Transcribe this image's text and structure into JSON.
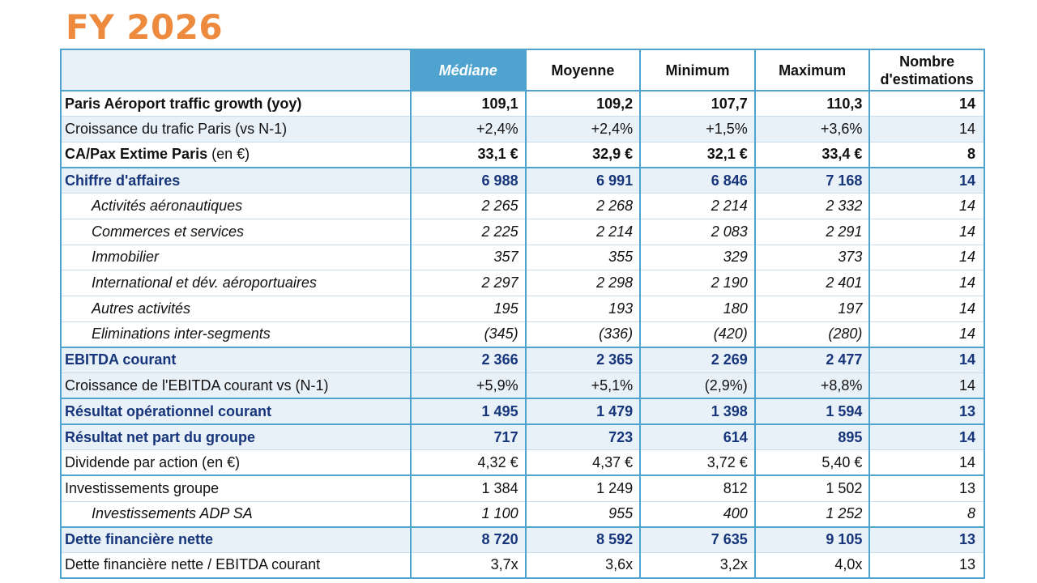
{
  "title": "FY 2026",
  "columns": [
    "Médiane",
    "Moyenne",
    "Minimum",
    "Maximum",
    "Nombre d'estimations"
  ],
  "rows": [
    {
      "label": "Paris Aéroport traffic growth (yoy)",
      "suffix": "",
      "values": [
        "109,1",
        "109,2",
        "107,7",
        "110,3"
      ],
      "count": "14",
      "style": "bold"
    },
    {
      "label": "Croissance du trafic Paris (vs N-1)",
      "suffix": "",
      "values": [
        "+2,4%",
        "+2,4%",
        "+1,5%",
        "+3,6%"
      ],
      "count": "14",
      "style": "shaded"
    },
    {
      "label": "CA/Pax Extime Paris",
      "suffix": " (en €)",
      "values": [
        "33,1 €",
        "32,9 €",
        "32,1 €",
        "33,4 €"
      ],
      "count": "8",
      "style": "bold"
    },
    {
      "label": "Chiffre d'affaires",
      "suffix": "",
      "values": [
        "6 988",
        "6 991",
        "6 846",
        "7 168"
      ],
      "count": "14",
      "style": "navy"
    },
    {
      "label": "Activités aéronautiques",
      "suffix": "",
      "values": [
        "2 265",
        "2 268",
        "2 214",
        "2 332"
      ],
      "count": "14",
      "style": "sub"
    },
    {
      "label": "Commerces et services",
      "suffix": "",
      "values": [
        "2 225",
        "2 214",
        "2 083",
        "2 291"
      ],
      "count": "14",
      "style": "sub"
    },
    {
      "label": "Immobilier",
      "suffix": "",
      "values": [
        "357",
        "355",
        "329",
        "373"
      ],
      "count": "14",
      "style": "sub"
    },
    {
      "label": "International et dév. aéroportuaires",
      "suffix": "",
      "values": [
        "2 297",
        "2 298",
        "2 190",
        "2 401"
      ],
      "count": "14",
      "style": "sub"
    },
    {
      "label": "Autres activités",
      "suffix": "",
      "values": [
        "195",
        "193",
        "180",
        "197"
      ],
      "count": "14",
      "style": "sub"
    },
    {
      "label": "Eliminations inter-segments",
      "suffix": "",
      "values": [
        "(345)",
        "(336)",
        "(420)",
        "(280)"
      ],
      "count": "14",
      "style": "sub"
    },
    {
      "label": "EBITDA courant",
      "suffix": "",
      "values": [
        "2 366",
        "2 365",
        "2 269",
        "2 477"
      ],
      "count": "14",
      "style": "navy"
    },
    {
      "label": "Croissance de l'EBITDA courant vs (N-1)",
      "suffix": "",
      "values": [
        "+5,9%",
        "+5,1%",
        "(2,9%)",
        "+8,8%"
      ],
      "count": "14",
      "style": "shaded"
    },
    {
      "label": "Résultat opérationnel courant",
      "suffix": "",
      "values": [
        "1 495",
        "1 479",
        "1 398",
        "1 594"
      ],
      "count": "13",
      "style": "navy"
    },
    {
      "label": "Résultat net part du groupe",
      "suffix": "",
      "values": [
        "717",
        "723",
        "614",
        "895"
      ],
      "count": "14",
      "style": "navy"
    },
    {
      "label": "Dividende  par action (en €)",
      "suffix": "",
      "values": [
        "4,32 €",
        "4,37 €",
        "3,72 €",
        "5,40 €"
      ],
      "count": "14",
      "style": "plain"
    },
    {
      "label": "Investissements groupe",
      "suffix": "",
      "values": [
        "1 384",
        "1 249",
        "812",
        "1 502"
      ],
      "count": "13",
      "style": "plain"
    },
    {
      "label": "Investissements ADP SA",
      "suffix": "",
      "values": [
        "1 100",
        "955",
        "400",
        "1 252"
      ],
      "count": "8",
      "style": "sub"
    },
    {
      "label": "Dette financière nette",
      "suffix": "",
      "values": [
        "8 720",
        "8 592",
        "7 635",
        "9 105"
      ],
      "count": "13",
      "style": "navy"
    },
    {
      "label": "Dette financière nette / EBITDA courant",
      "suffix": "",
      "values": [
        "3,7x",
        "3,6x",
        "3,2x",
        "4,0x"
      ],
      "count": "13",
      "style": "plain"
    }
  ],
  "colors": {
    "title": "#ee8a3e",
    "border": "#4fa3cf",
    "navy": "#17357a",
    "shade": "#e9f1f8"
  }
}
